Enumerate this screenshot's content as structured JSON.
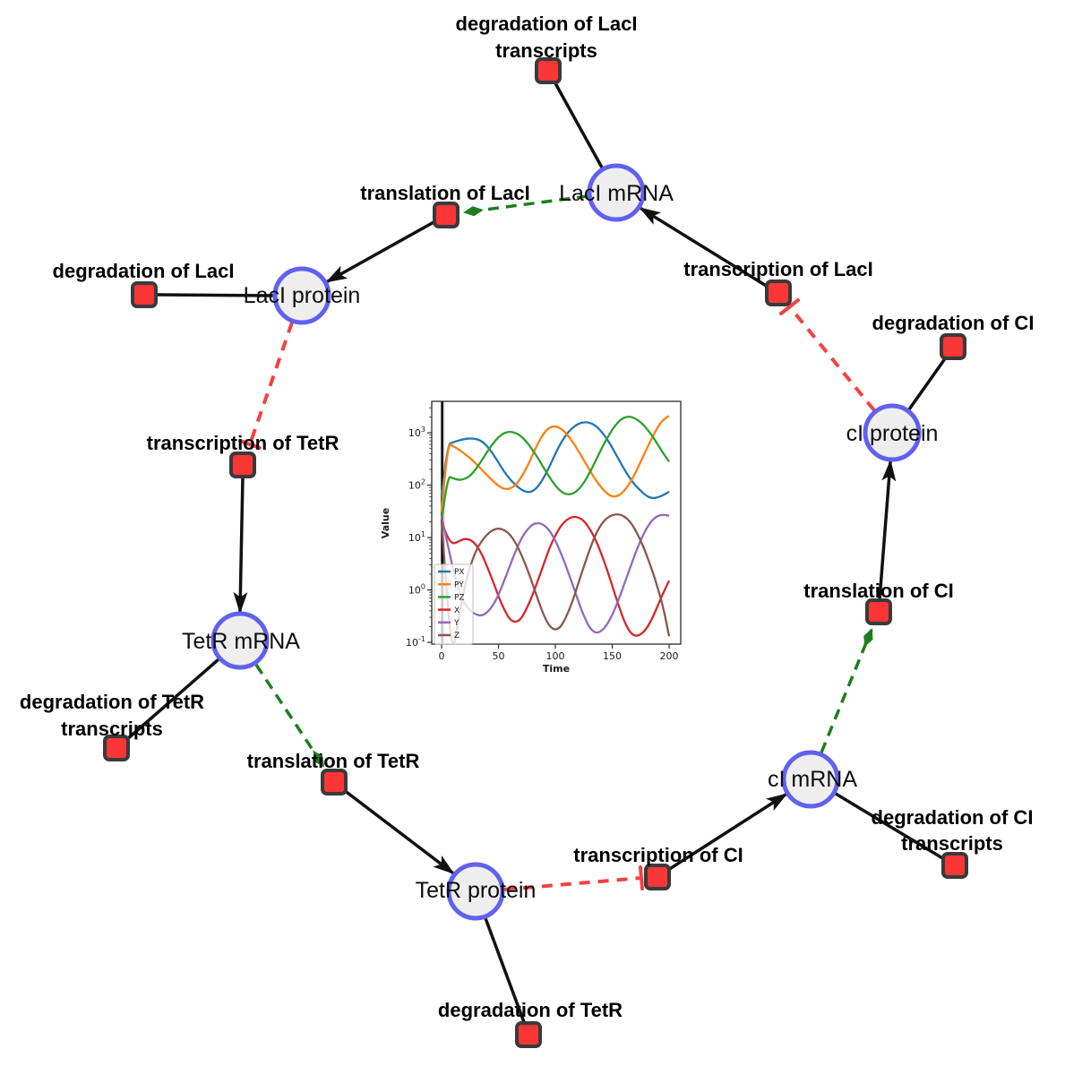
{
  "diagram": {
    "colors": {
      "species_fill": "#eeeeee",
      "species_border": "#6161f0",
      "reaction_fill": "#fa3636",
      "reaction_border": "#3a3a3a",
      "edge_black": "#111111",
      "edge_catalysis_green": "#1e7e1e",
      "edge_inhibition_red": "#f54141"
    },
    "species": {
      "laci_mrna": {
        "label": "LacI mRNA"
      },
      "laci_protein": {
        "label": "LacI protein"
      },
      "ci_protein": {
        "label": "cI protein"
      },
      "tetr_mrna": {
        "label": "TetR mRNA"
      },
      "ci_mrna": {
        "label": "cI mRNA"
      },
      "tetr_protein": {
        "label": "TetR protein"
      }
    },
    "reactions": {
      "deg_laci_tr": {
        "line1": "degradation of LacI",
        "line2": "transcripts"
      },
      "transl_laci": {
        "label": "translation of LacI"
      },
      "transc_laci": {
        "label": "transcription of LacI"
      },
      "deg_laci": {
        "label": "degradation of LacI"
      },
      "deg_ci": {
        "label": "degradation of CI"
      },
      "transc_tetr": {
        "label": "transcription of TetR"
      },
      "transl_ci": {
        "label": "translation of CI"
      },
      "deg_tetr_tr": {
        "line1": "degradation of TetR",
        "line2": "transcripts"
      },
      "transl_tetr": {
        "label": "translation of TetR"
      },
      "transc_ci": {
        "label": "transcription of CI"
      },
      "deg_ci_tr": {
        "line1": "degradation of CI",
        "line2": "transcripts"
      },
      "deg_tetr": {
        "label": "degradation of TetR"
      }
    }
  },
  "chart_data": {
    "type": "line",
    "title": "",
    "xlabel": "Time",
    "ylabel": "Value",
    "y_scale": "log",
    "x_ticks": [
      0,
      50,
      100,
      150,
      200
    ],
    "y_tick_exponents": [
      -1,
      0,
      1,
      2,
      3
    ],
    "xlim": [
      -8.7,
      210.2
    ],
    "ylim_log": [
      -1.034,
      3.6
    ],
    "legend_position": "lower left",
    "grid": false,
    "annotations": [
      {
        "type": "vspan",
        "x0": -1.2,
        "x1": 3.0,
        "color": "#c9c0c0",
        "opacity": 0.45
      },
      {
        "type": "vline",
        "x": 0.5,
        "color": "#000000",
        "width": 2.6
      }
    ],
    "t": [
      0,
      5,
      10,
      15,
      20,
      25,
      30,
      35,
      40,
      45,
      50,
      55,
      60,
      65,
      70,
      75,
      80,
      85,
      90,
      95,
      100,
      105,
      110,
      115,
      120,
      125,
      130,
      135,
      140,
      145,
      150,
      155,
      160,
      165,
      170,
      175,
      180,
      185,
      190,
      195,
      200
    ],
    "series": [
      {
        "name": "PX",
        "color": "#1f77b4",
        "values": [
          60,
          600,
          660,
          710,
          760,
          780,
          765,
          700,
          560,
          400,
          270,
          180,
          130,
          100,
          82,
          73,
          76,
          95,
          140,
          230,
          400,
          650,
          950,
          1250,
          1480,
          1600,
          1570,
          1390,
          1090,
          780,
          520,
          330,
          210,
          140,
          100,
          78,
          62,
          56,
          58,
          65,
          75
        ]
      },
      {
        "name": "PY",
        "color": "#ff7f0e",
        "values": [
          30,
          620,
          560,
          480,
          400,
          330,
          260,
          200,
          155,
          120,
          97,
          84,
          85,
          100,
          140,
          220,
          380,
          650,
          1000,
          1280,
          1340,
          1200,
          950,
          680,
          460,
          300,
          195,
          130,
          92,
          70,
          60,
          62,
          75,
          105,
          165,
          280,
          480,
          800,
          1300,
          1800,
          2100
        ]
      },
      {
        "name": "PZ",
        "color": "#2ca02c",
        "values": [
          20,
          150,
          135,
          125,
          130,
          150,
          200,
          290,
          430,
          620,
          830,
          1000,
          1050,
          1000,
          860,
          660,
          470,
          320,
          210,
          140,
          98,
          75,
          66,
          68,
          80,
          110,
          170,
          280,
          470,
          760,
          1150,
          1600,
          1950,
          2050,
          1900,
          1600,
          1230,
          880,
          600,
          400,
          280
        ]
      },
      {
        "name": "X",
        "color": "#d62728",
        "values": [
          20,
          10,
          7.5,
          8.5,
          9.5,
          9.2,
          7.5,
          5,
          2.8,
          1.5,
          0.75,
          0.42,
          0.27,
          0.24,
          0.28,
          0.45,
          0.8,
          1.6,
          3.2,
          6.5,
          11,
          17,
          22,
          25,
          24.5,
          21,
          15,
          9.5,
          5.2,
          2.6,
          1.2,
          0.55,
          0.27,
          0.16,
          0.13,
          0.14,
          0.18,
          0.28,
          0.5,
          0.9,
          1.5
        ]
      },
      {
        "name": "Y",
        "color": "#9467bd",
        "values": [
          25,
          8,
          2.5,
          1.0,
          0.55,
          0.4,
          0.34,
          0.32,
          0.37,
          0.5,
          0.8,
          1.5,
          2.9,
          5.5,
          9.5,
          14,
          18,
          19,
          17.5,
          13.5,
          8.8,
          5,
          2.6,
          1.3,
          0.62,
          0.32,
          0.19,
          0.15,
          0.16,
          0.21,
          0.33,
          0.6,
          1.2,
          2.4,
          4.8,
          9,
          15,
          21.5,
          26,
          27.5,
          26
        ]
      },
      {
        "name": "Z",
        "color": "#8c564b",
        "values": [
          22,
          0.5,
          0.06,
          0.3,
          1.1,
          2.8,
          5.5,
          8.5,
          11.5,
          14,
          15,
          14,
          11.5,
          8,
          4.8,
          2.6,
          1.3,
          0.62,
          0.32,
          0.2,
          0.17,
          0.2,
          0.32,
          0.6,
          1.3,
          2.8,
          5.8,
          11,
          17.5,
          23.5,
          27,
          28,
          26,
          21,
          14.5,
          8.8,
          4.8,
          2.4,
          1.1,
          0.45,
          0.13
        ]
      }
    ]
  }
}
